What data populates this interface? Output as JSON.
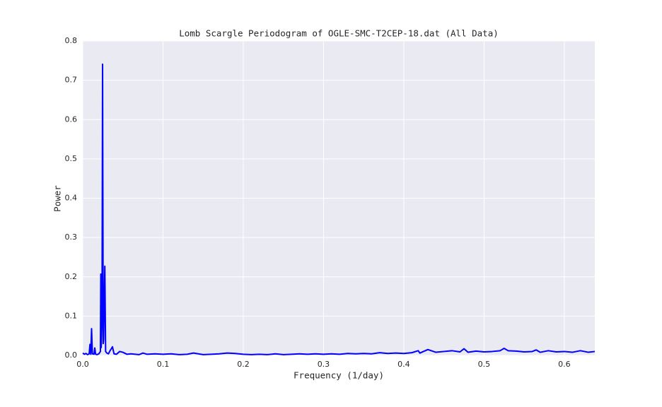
{
  "chart_data": {
    "type": "line",
    "title": "Lomb Scargle Periodogram of OGLE-SMC-T2CEP-18.dat (All Data)",
    "x_label": "Frequency (1/day)",
    "y_label": "Power",
    "x": [
      0,
      0.002,
      0.004,
      0.006,
      0.008,
      0.009,
      0.01,
      0.011,
      0.012,
      0.014,
      0.015,
      0.016,
      0.018,
      0.02,
      0.022,
      0.0225,
      0.023,
      0.024,
      0.0247,
      0.0255,
      0.026,
      0.0275,
      0.0285,
      0.03,
      0.032,
      0.034,
      0.036,
      0.037,
      0.039,
      0.042,
      0.046,
      0.05,
      0.055,
      0.06,
      0.07,
      0.075,
      0.08,
      0.09,
      0.1,
      0.11,
      0.12,
      0.13,
      0.138,
      0.15,
      0.16,
      0.17,
      0.18,
      0.19,
      0.2,
      0.21,
      0.22,
      0.23,
      0.24,
      0.25,
      0.26,
      0.27,
      0.28,
      0.29,
      0.3,
      0.31,
      0.32,
      0.33,
      0.34,
      0.35,
      0.36,
      0.37,
      0.38,
      0.39,
      0.4,
      0.41,
      0.418,
      0.42,
      0.43,
      0.44,
      0.45,
      0.46,
      0.47,
      0.475,
      0.48,
      0.49,
      0.5,
      0.51,
      0.52,
      0.525,
      0.53,
      0.54,
      0.55,
      0.56,
      0.565,
      0.57,
      0.58,
      0.59,
      0.6,
      0.61,
      0.62,
      0.63,
      0.638
    ],
    "values": [
      0.006,
      0.003,
      0.005,
      0.002,
      0.004,
      0.028,
      0.003,
      0.068,
      0.004,
      0.003,
      0.019,
      0.003,
      0.002,
      0.004,
      0.01,
      0.207,
      0.02,
      0.095,
      0.741,
      0.03,
      0.04,
      0.227,
      0.01,
      0.006,
      0.004,
      0.012,
      0.018,
      0.022,
      0.004,
      0.003,
      0.01,
      0.008,
      0.003,
      0.004,
      0.002,
      0.006,
      0.003,
      0.004,
      0.003,
      0.004,
      0.002,
      0.003,
      0.006,
      0.002,
      0.003,
      0.004,
      0.006,
      0.005,
      0.003,
      0.002,
      0.003,
      0.002,
      0.004,
      0.002,
      0.003,
      0.004,
      0.003,
      0.004,
      0.003,
      0.004,
      0.003,
      0.005,
      0.004,
      0.005,
      0.004,
      0.007,
      0.005,
      0.006,
      0.005,
      0.007,
      0.012,
      0.006,
      0.015,
      0.008,
      0.01,
      0.012,
      0.009,
      0.017,
      0.008,
      0.011,
      0.009,
      0.01,
      0.012,
      0.018,
      0.012,
      0.011,
      0.009,
      0.01,
      0.014,
      0.008,
      0.012,
      0.009,
      0.01,
      0.008,
      0.012,
      0.008,
      0.01
    ],
    "color": "#0000ff",
    "xlim": [
      0,
      0.638
    ],
    "ylim": [
      0,
      0.8
    ],
    "xticks": [
      {
        "value": 0,
        "label": "0.0"
      },
      0.1,
      0.2,
      0.3,
      0.4,
      0.5,
      0.6
    ],
    "yticks": [
      {
        "value": 0,
        "label": "0.0"
      },
      0.1,
      0.2,
      0.3,
      0.4,
      0.5,
      0.6,
      0.7,
      0.8
    ],
    "grid": true
  }
}
